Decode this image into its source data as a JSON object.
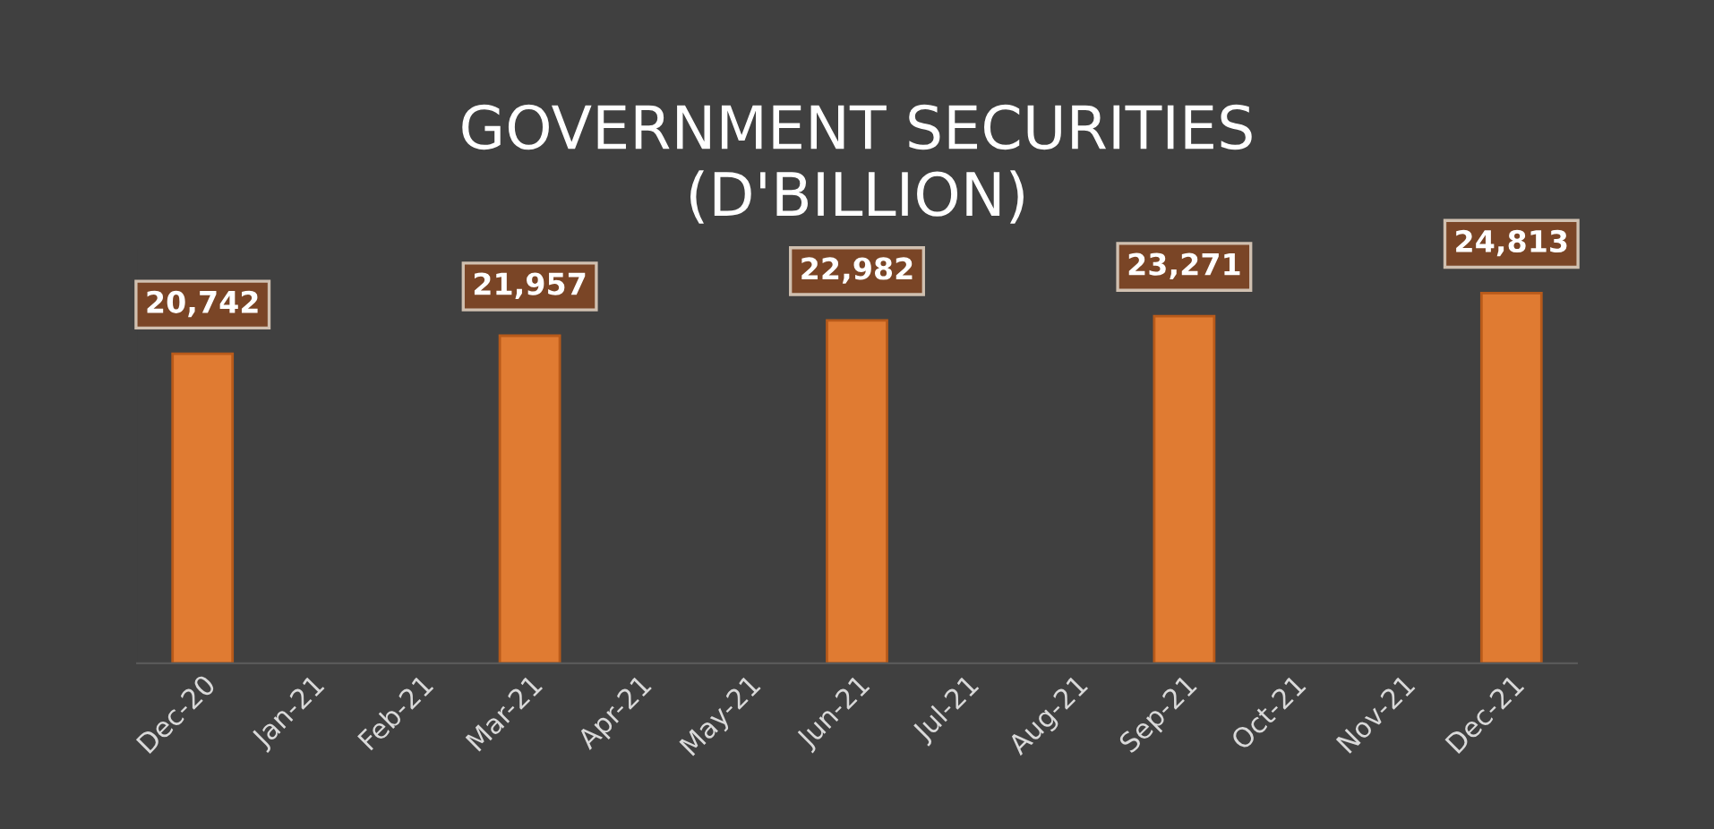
{
  "chart_data": {
    "type": "bar",
    "title": "GOVERNMENT SECURITIES\n(D'BILLION)",
    "categories": [
      "Dec-20",
      "Jan-21",
      "Feb-21",
      "Mar-21",
      "Apr-21",
      "May-21",
      "Jun-21",
      "Jul-21",
      "Aug-21",
      "Sep-21",
      "Oct-21",
      "Nov-21",
      "Dec-21"
    ],
    "values": [
      20742,
      null,
      null,
      21957,
      null,
      null,
      22982,
      null,
      null,
      23271,
      null,
      null,
      24813
    ],
    "color": "#e07b32",
    "value_labels": [
      "20,742",
      null,
      null,
      "21,957",
      null,
      null,
      "22,982",
      null,
      null,
      "23,271",
      null,
      null,
      "24,813"
    ],
    "grid": false,
    "legend": false,
    "tick_labels": "x"
  }
}
